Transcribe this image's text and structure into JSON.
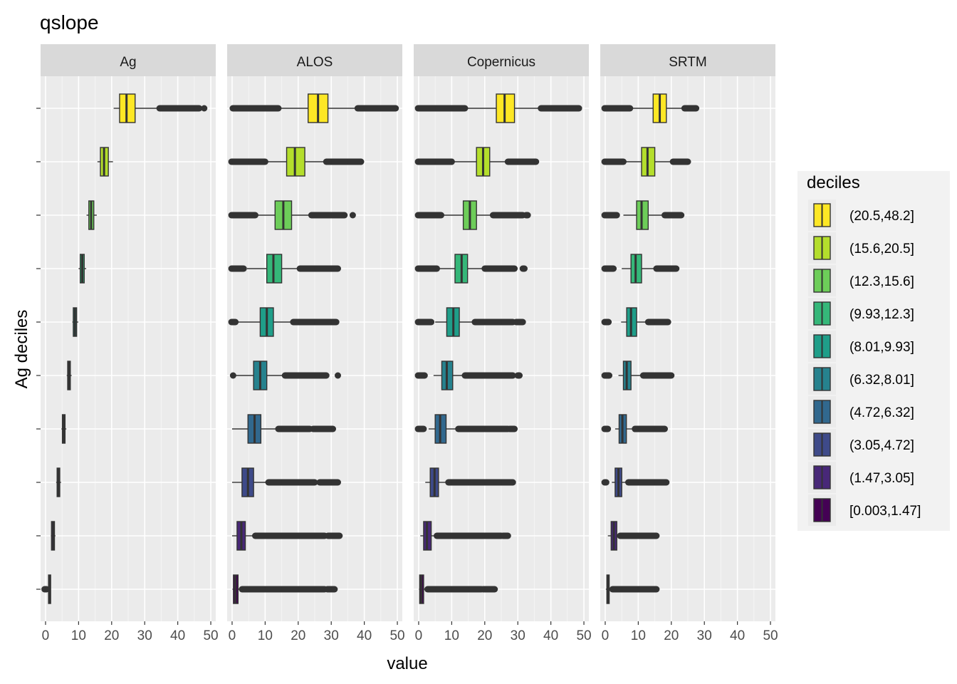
{
  "chart_data": {
    "type": "boxplot",
    "title": "qslope",
    "xlabel": "value",
    "ylabel": "Ag deciles",
    "xlim": [
      -1.5,
      51.5
    ],
    "x_ticks": [
      0,
      10,
      20,
      30,
      40,
      50
    ],
    "grid": true,
    "legend": {
      "title": "deciles",
      "position": "right",
      "entries": [
        "(20.5,48.2]",
        "(15.6,20.5]",
        "(12.3,15.6]",
        "(9.93,12.3]",
        "(8.01,9.93]",
        "(6.32,8.01]",
        "(4.72,6.32]",
        "(3.05,4.72]",
        "(1.47,3.05]",
        "[0.003,1.47]"
      ],
      "colors": [
        "#FDE725",
        "#B4DE2C",
        "#6DCD59",
        "#35B779",
        "#1F9E89",
        "#26828E",
        "#31688E",
        "#3E4A89",
        "#482878",
        "#440154"
      ]
    },
    "categories": [
      "[0.003,1.47]",
      "(1.47,3.05]",
      "(3.05,4.72]",
      "(4.72,6.32]",
      "(6.32,8.01]",
      "(8.01,9.93]",
      "(9.93,12.3]",
      "(12.3,15.6]",
      "(15.6,20.5]",
      "(20.5,48.2]"
    ],
    "panels": [
      {
        "name": "Ag",
        "boxes": [
          {
            "whisker_low": 0.8,
            "q1": 0.9,
            "median": 1.1,
            "q3": 1.3,
            "whisker_high": 1.45,
            "outliers": [
              [
                -0.3,
                0.3
              ]
            ]
          },
          {
            "whisker_low": 1.6,
            "q1": 1.8,
            "median": 2.3,
            "q3": 2.7,
            "whisker_high": 3.0,
            "outliers": []
          },
          {
            "whisker_low": 3.2,
            "q1": 3.5,
            "median": 3.9,
            "q3": 4.3,
            "whisker_high": 4.7,
            "outliers": []
          },
          {
            "whisker_low": 4.8,
            "q1": 5.1,
            "median": 5.5,
            "q3": 5.9,
            "whisker_high": 6.3,
            "outliers": []
          },
          {
            "whisker_low": 6.4,
            "q1": 6.7,
            "median": 7.1,
            "q3": 7.5,
            "whisker_high": 7.9,
            "outliers": []
          },
          {
            "whisker_low": 8.1,
            "q1": 8.4,
            "median": 8.9,
            "q3": 9.4,
            "whisker_high": 9.9,
            "outliers": []
          },
          {
            "whisker_low": 10.0,
            "q1": 10.5,
            "median": 11.1,
            "q3": 11.7,
            "whisker_high": 12.3,
            "outliers": []
          },
          {
            "whisker_low": 12.4,
            "q1": 13.1,
            "median": 13.8,
            "q3": 14.6,
            "whisker_high": 15.5,
            "outliers": []
          },
          {
            "whisker_low": 15.7,
            "q1": 16.6,
            "median": 17.7,
            "q3": 19.0,
            "whisker_high": 20.4,
            "outliers": []
          },
          {
            "whisker_low": 20.6,
            "q1": 22.4,
            "median": 24.5,
            "q3": 27.1,
            "whisker_high": 34.0,
            "outliers": [
              [
                34.5,
                46.5
              ],
              [
                48.0,
                48.2
              ]
            ]
          }
        ]
      },
      {
        "name": "ALOS",
        "boxes": [
          {
            "whisker_low": 0.1,
            "q1": 0.4,
            "median": 1.0,
            "q3": 1.8,
            "whisker_high": 2.9,
            "outliers": [
              [
                3.0,
                28.0
              ],
              [
                28.8,
                31.0
              ]
            ]
          },
          {
            "whisker_low": 0.0,
            "q1": 1.5,
            "median": 2.8,
            "q3": 4.0,
            "whisker_high": 7.0,
            "outliers": [
              [
                7.0,
                28.0
              ],
              [
                29.0,
                32.5
              ]
            ]
          },
          {
            "whisker_low": 0.0,
            "q1": 3.0,
            "median": 4.8,
            "q3": 6.5,
            "whisker_high": 11.0,
            "outliers": [
              [
                11.0,
                25.0
              ],
              [
                26.5,
                32.0
              ]
            ]
          },
          {
            "whisker_low": 0.0,
            "q1": 4.8,
            "median": 6.8,
            "q3": 8.7,
            "whisker_high": 14.0,
            "outliers": [
              [
                14.0,
                23.5
              ],
              [
                24.5,
                30.5
              ]
            ]
          },
          {
            "whisker_low": 1.0,
            "q1": 6.5,
            "median": 8.5,
            "q3": 10.5,
            "whisker_high": 16.0,
            "outliers": [
              [
                0.3,
                0.5
              ],
              [
                16.0,
                28.5
              ],
              [
                32.0,
                32.0
              ]
            ]
          },
          {
            "whisker_low": 1.5,
            "q1": 8.5,
            "median": 10.5,
            "q3": 12.5,
            "whisker_high": 18.5,
            "outliers": [
              [
                -0.2,
                1.0
              ],
              [
                18.5,
                31.5
              ]
            ]
          },
          {
            "whisker_low": 4.5,
            "q1": 10.5,
            "median": 12.5,
            "q3": 15.0,
            "whisker_high": 20.5,
            "outliers": [
              [
                -0.2,
                3.5
              ],
              [
                20.5,
                32.0
              ]
            ]
          },
          {
            "whisker_low": 7.0,
            "q1": 13.0,
            "median": 15.5,
            "q3": 18.0,
            "whisker_high": 24.0,
            "outliers": [
              [
                -0.2,
                7.0
              ],
              [
                24.0,
                34.0
              ],
              [
                36.5,
                36.5
              ]
            ]
          },
          {
            "whisker_low": 10.0,
            "q1": 16.5,
            "median": 19.0,
            "q3": 22.0,
            "whisker_high": 28.5,
            "outliers": [
              [
                -0.2,
                10.0
              ],
              [
                28.5,
                39.0
              ]
            ]
          },
          {
            "whisker_low": 14.0,
            "q1": 23.0,
            "median": 26.0,
            "q3": 29.0,
            "whisker_high": 38.0,
            "outliers": [
              [
                0.2,
                14.0
              ],
              [
                38.0,
                49.5
              ]
            ]
          }
        ]
      },
      {
        "name": "Copernicus",
        "boxes": [
          {
            "whisker_low": 0.1,
            "q1": 0.3,
            "median": 0.8,
            "q3": 1.5,
            "whisker_high": 2.7,
            "outliers": [
              [
                2.7,
                19.0
              ],
              [
                19.5,
                23.0
              ]
            ]
          },
          {
            "whisker_low": 0.5,
            "q1": 1.5,
            "median": 2.5,
            "q3": 3.8,
            "whisker_high": 5.5,
            "outliers": [
              [
                5.5,
                25.0
              ],
              [
                25.5,
                27.0
              ]
            ]
          },
          {
            "whisker_low": 2.0,
            "q1": 3.5,
            "median": 4.8,
            "q3": 6.0,
            "whisker_high": 9.0,
            "outliers": [
              [
                9.0,
                28.5
              ]
            ]
          },
          {
            "whisker_low": 3.0,
            "q1": 5.0,
            "median": 6.5,
            "q3": 8.3,
            "whisker_high": 12.0,
            "outliers": [
              [
                -0.2,
                1.5
              ],
              [
                12.0,
                27.0
              ],
              [
                27.5,
                29.0
              ]
            ]
          },
          {
            "whisker_low": 4.5,
            "q1": 7.0,
            "median": 8.5,
            "q3": 10.3,
            "whisker_high": 14.0,
            "outliers": [
              [
                -0.2,
                1.8
              ],
              [
                14.0,
                28.5
              ],
              [
                30.0,
                30.5
              ]
            ]
          },
          {
            "whisker_low": 5.0,
            "q1": 8.5,
            "median": 10.5,
            "q3": 12.3,
            "whisker_high": 17.0,
            "outliers": [
              [
                -0.2,
                3.8
              ],
              [
                17.0,
                28.5
              ],
              [
                29.5,
                31.5
              ]
            ]
          },
          {
            "whisker_low": 6.0,
            "q1": 11.0,
            "median": 13.0,
            "q3": 14.8,
            "whisker_high": 20.0,
            "outliers": [
              [
                -0.2,
                5.5
              ],
              [
                20.0,
                29.0
              ],
              [
                31.5,
                32.0
              ]
            ]
          },
          {
            "whisker_low": 7.0,
            "q1": 13.5,
            "median": 15.5,
            "q3": 17.5,
            "whisker_high": 22.5,
            "outliers": [
              [
                -0.2,
                6.8
              ],
              [
                22.5,
                31.5
              ],
              [
                32.5,
                33.0
              ]
            ]
          },
          {
            "whisker_low": 10.0,
            "q1": 17.5,
            "median": 19.5,
            "q3": 21.5,
            "whisker_high": 27.0,
            "outliers": [
              [
                -0.2,
                10.0
              ],
              [
                27.0,
                35.5
              ]
            ]
          },
          {
            "whisker_low": 14.0,
            "q1": 23.5,
            "median": 26.0,
            "q3": 29.0,
            "whisker_high": 37.0,
            "outliers": [
              [
                -0.2,
                14.0
              ],
              [
                37.0,
                48.5
              ]
            ]
          }
        ]
      },
      {
        "name": "SRTM",
        "boxes": [
          {
            "whisker_low": 0.2,
            "q1": 0.5,
            "median": 0.8,
            "q3": 1.2,
            "whisker_high": 2.2,
            "outliers": [
              [
                2.2,
                15.5
              ]
            ]
          },
          {
            "whisker_low": 0.8,
            "q1": 1.8,
            "median": 2.6,
            "q3": 3.5,
            "whisker_high": 4.5,
            "outliers": [
              [
                4.5,
                15.5
              ]
            ]
          },
          {
            "whisker_low": 2.0,
            "q1": 3.0,
            "median": 4.0,
            "q3": 5.0,
            "whisker_high": 7.0,
            "outliers": [
              [
                -0.2,
                0.3
              ],
              [
                7.0,
                18.5
              ]
            ]
          },
          {
            "whisker_low": 3.0,
            "q1": 4.2,
            "median": 5.2,
            "q3": 6.4,
            "whisker_high": 9.0,
            "outliers": [
              [
                -0.2,
                0.8
              ],
              [
                9.0,
                18.0
              ]
            ]
          },
          {
            "whisker_low": 4.0,
            "q1": 5.5,
            "median": 6.5,
            "q3": 7.8,
            "whisker_high": 11.5,
            "outliers": [
              [
                -0.2,
                1.2
              ],
              [
                11.5,
                20.0
              ]
            ]
          },
          {
            "whisker_low": 4.8,
            "q1": 6.5,
            "median": 7.8,
            "q3": 9.5,
            "whisker_high": 13.0,
            "outliers": [
              [
                -0.2,
                1.0
              ],
              [
                13.0,
                19.0
              ]
            ]
          },
          {
            "whisker_low": 5.0,
            "q1": 7.8,
            "median": 9.2,
            "q3": 11.0,
            "whisker_high": 15.5,
            "outliers": [
              [
                -0.2,
                2.5
              ],
              [
                15.5,
                21.5
              ]
            ]
          },
          {
            "whisker_low": 5.5,
            "q1": 9.5,
            "median": 11.0,
            "q3": 13.0,
            "whisker_high": 18.0,
            "outliers": [
              [
                -0.2,
                3.5
              ],
              [
                18.0,
                23.0
              ]
            ]
          },
          {
            "whisker_low": 6.0,
            "q1": 11.0,
            "median": 12.8,
            "q3": 15.0,
            "whisker_high": 20.5,
            "outliers": [
              [
                -0.2,
                5.5
              ],
              [
                20.5,
                25.0
              ]
            ]
          },
          {
            "whisker_low": 8.0,
            "q1": 14.5,
            "median": 16.5,
            "q3": 18.5,
            "whisker_high": 24.0,
            "outliers": [
              [
                -0.2,
                7.5
              ],
              [
                24.0,
                27.5
              ]
            ]
          }
        ]
      }
    ]
  }
}
